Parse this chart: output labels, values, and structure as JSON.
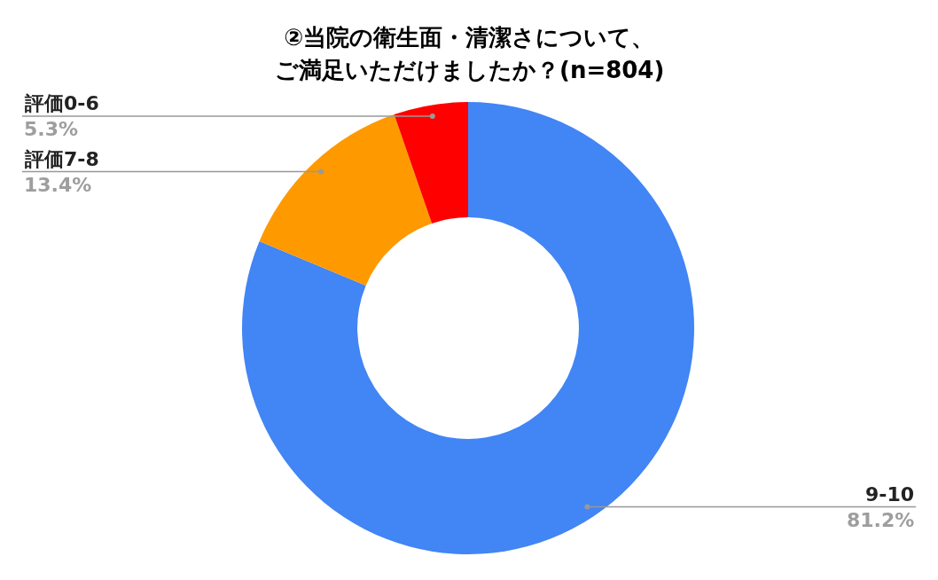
{
  "chart_data": {
    "type": "donut",
    "title": "②当院の衛生面・清潔さについて、",
    "subtitle": "ご満足いただけましたか？(n=804)",
    "categories": [
      "9-10",
      "評価7-8",
      "評価0-6"
    ],
    "values": [
      81.2,
      13.4,
      5.3
    ],
    "value_labels": [
      "81.2%",
      "13.4%",
      "5.3%"
    ],
    "colors": [
      "#4285f4",
      "#ff9900",
      "#ff0000"
    ],
    "legend": false
  }
}
